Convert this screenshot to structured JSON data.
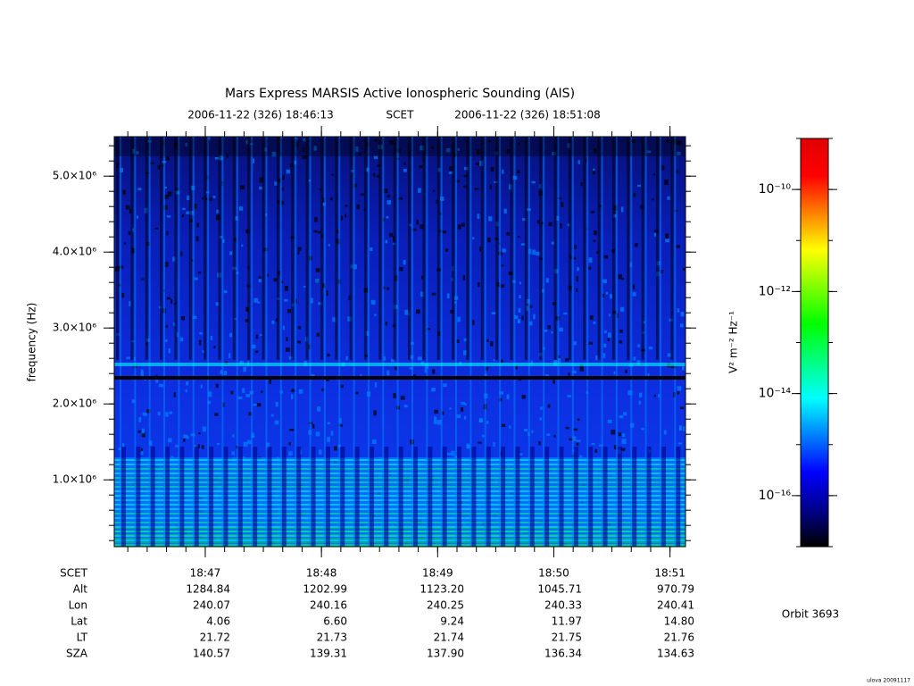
{
  "chart_data": {
    "type": "spectrogram",
    "title": "Mars Express MARSIS Active Ionospheric Sounding (AIS)",
    "start_label": "2006-11-22 (326) 18:46:13",
    "time_label": "SCET",
    "end_label": "2006-11-22 (326) 18:51:08",
    "ylabel": "frequency (Hz)",
    "xlim": [
      67573,
      67868
    ],
    "xticks": [
      {
        "value": 67620,
        "label": "18:47"
      },
      {
        "value": 67680,
        "label": "18:48"
      },
      {
        "value": 67740,
        "label": "18:49"
      },
      {
        "value": 67800,
        "label": "18:50"
      },
      {
        "value": 67860,
        "label": "18:51"
      }
    ],
    "ylim": [
      120000,
      5520000
    ],
    "yticks": [
      {
        "value": 1000000,
        "label": "1.0×10⁶"
      },
      {
        "value": 2000000,
        "label": "2.0×10⁶"
      },
      {
        "value": 3000000,
        "label": "3.0×10⁶"
      },
      {
        "value": 4000000,
        "label": "4.0×10⁶"
      },
      {
        "value": 5000000,
        "label": "5.0×10⁶"
      }
    ],
    "colorbar": {
      "label": "V² m⁻² Hz⁻¹",
      "log_scale": true,
      "zlim": [
        1e-17,
        1e-09
      ],
      "ticks": [
        {
          "value": 1e-10,
          "label": "10⁻¹⁰"
        },
        {
          "value": 1e-12,
          "label": "10⁻¹²"
        },
        {
          "value": 1e-14,
          "label": "10⁻¹⁴"
        },
        {
          "value": 1e-16,
          "label": "10⁻¹⁶"
        }
      ],
      "colormap": [
        "#000000",
        "#00008c",
        "#0000ff",
        "#0080ff",
        "#00ffff",
        "#00ff80",
        "#00ff00",
        "#80ff00",
        "#ffff00",
        "#ff8000",
        "#ff0000",
        "#e00000"
      ]
    },
    "ephemeris": {
      "time_row_label": "SCET",
      "rows": [
        {
          "label": "Alt",
          "values": [
            "1284.84",
            "1202.99",
            "1123.20",
            "1045.71",
            "970.79"
          ]
        },
        {
          "label": "Lon",
          "values": [
            "240.07",
            "240.16",
            "240.25",
            "240.33",
            "240.41"
          ]
        },
        {
          "label": "Lat",
          "values": [
            "4.06",
            "6.60",
            "9.24",
            "11.97",
            "14.80"
          ]
        },
        {
          "label": "LT",
          "values": [
            "21.72",
            "21.73",
            "21.74",
            "21.75",
            "21.76"
          ]
        },
        {
          "label": "SZA",
          "values": [
            "140.57",
            "139.31",
            "137.90",
            "136.34",
            "134.63"
          ]
        }
      ]
    },
    "orbit": "Orbit 3693",
    "footer": "ulova 20091117"
  }
}
